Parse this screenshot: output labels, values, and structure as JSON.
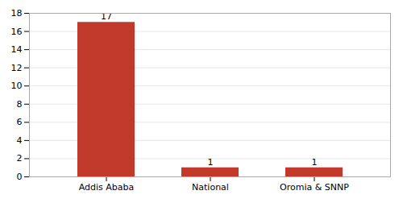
{
  "chart_data": {
    "type": "bar",
    "categories": [
      "Addis Ababa",
      "National",
      "Oromia & SNNP"
    ],
    "values": [
      17,
      1,
      1
    ],
    "color": "#C0392B",
    "ylim": [
      0,
      18
    ],
    "yticks": [
      0,
      2,
      4,
      6,
      8,
      10,
      12,
      14,
      16,
      18
    ],
    "grid": true,
    "data_labels": true
  }
}
